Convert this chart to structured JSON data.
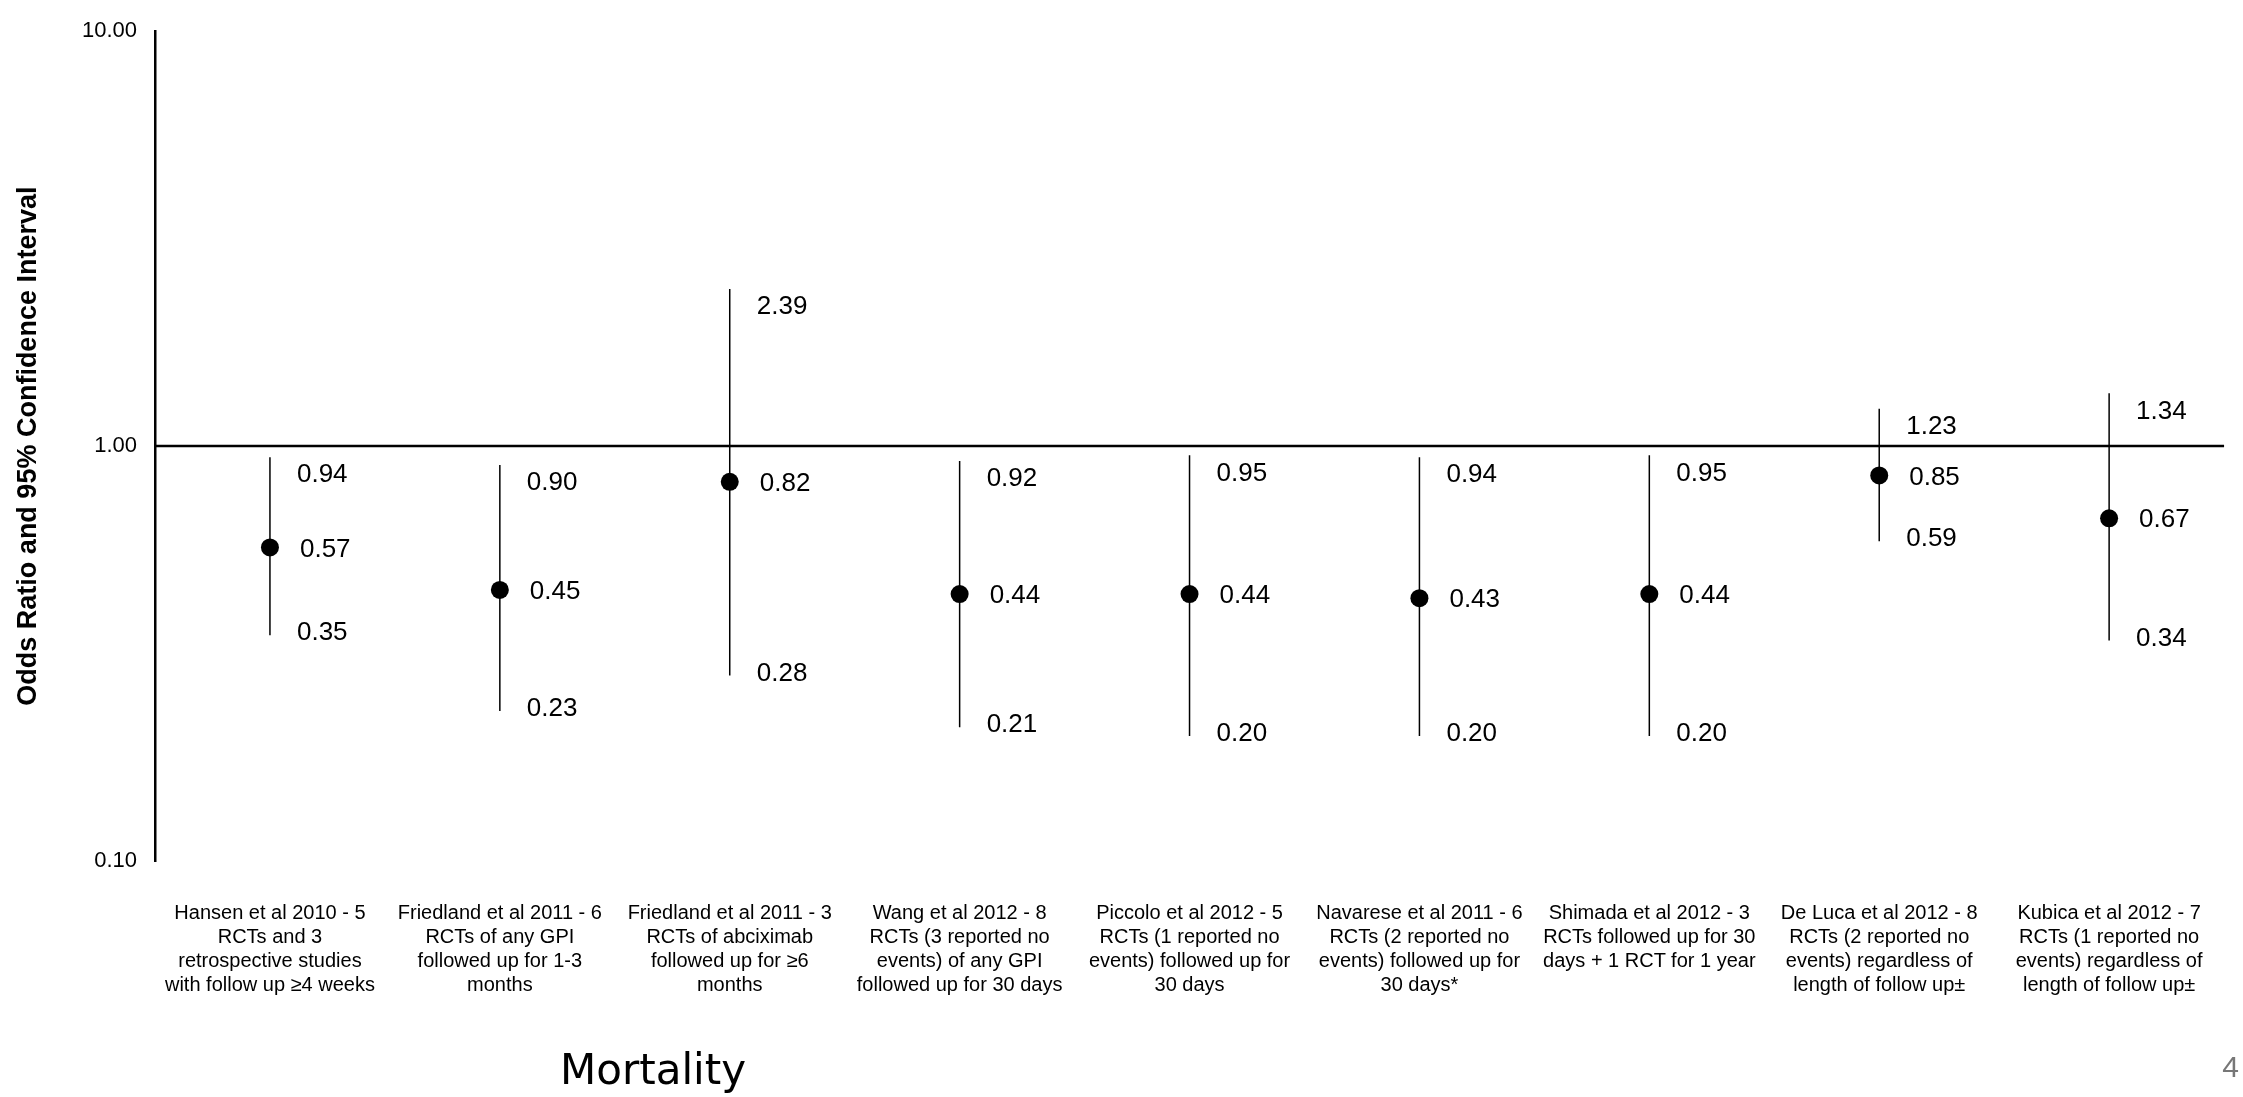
{
  "chart_data": {
    "type": "scatter",
    "ylabel": "Odds Ratio and 95% Confidence Interval",
    "xlabel": "Mortality",
    "categories": [
      "Hansen et al 2010 - 5 RCTs and 3 retrospective studies with follow up ≥4 weeks",
      "Friedland et al 2011 - 6 RCTs of any GPI followed up for 1-3 months",
      "Friedland et al 2011 - 3 RCTs of abciximab followed up for ≥6 months",
      "Wang et al 2012 - 8 RCTs (3 reported no events) of any GPI followed up for 30 days",
      "Piccolo et al 2012 - 5 RCTs (1 reported no events) followed up for 30 days",
      "Navarese et al 2011 - 6 RCTs (2 reported no events) followed up for 30 days*",
      "Shimada et al 2012 - 3 RCTs followed up for 30 days + 1 RCT for 1 year",
      "De Luca et al 2012 - 8 RCTs (2 reported no events) regardless of length of follow up±",
      "Kubica et al 2012 - 7 RCTs (1 reported no events) regardless of length of follow up±"
    ],
    "values": [
      0.57,
      0.45,
      0.82,
      0.44,
      0.44,
      0.43,
      0.44,
      0.85,
      0.67
    ],
    "errors": [
      [
        0.35,
        0.94
      ],
      [
        0.23,
        0.9
      ],
      [
        0.28,
        2.39
      ],
      [
        0.21,
        0.92
      ],
      [
        0.2,
        0.95
      ],
      [
        0.2,
        0.94
      ],
      [
        0.2,
        0.95
      ],
      [
        0.59,
        1.23
      ],
      [
        0.34,
        1.34
      ]
    ],
    "color": "#000000",
    "marker": "circle",
    "log": "y",
    "ylim": [
      0.1,
      10
    ],
    "yticks": [
      {
        "value": 0.1,
        "label": "0.10"
      },
      {
        "value": 1,
        "label": "1.00"
      },
      {
        "value": 10,
        "label": "10.00"
      }
    ],
    "ref_lines": [
      {
        "axis": "y",
        "value": 1,
        "color": "#000000"
      }
    ],
    "data_labels": true,
    "grid": false,
    "legend": false,
    "annotations": [
      "4",
      {
        "text": "0.94",
        "x": "Hansen et al 2010 - 5 RCTs and 3 retrospective studies with follow up ≥4 weeks",
        "y": 0.94
      },
      {
        "text": "0.35",
        "x": "Hansen et al 2010 - 5 RCTs and 3 retrospective studies with follow up ≥4 weeks",
        "y": 0.35
      },
      {
        "text": "0.90",
        "x": "Friedland et al 2011 - 6 RCTs of any GPI followed up for 1-3 months",
        "y": 0.9
      },
      {
        "text": "0.23",
        "x": "Friedland et al 2011 - 6 RCTs of any GPI followed up for 1-3 months",
        "y": 0.23
      },
      {
        "text": "2.39",
        "x": "Friedland et al 2011 - 3 RCTs of abciximab followed up for ≥6 months",
        "y": 2.39
      },
      {
        "text": "0.28",
        "x": "Friedland et al 2011 - 3 RCTs of abciximab followed up for ≥6 months",
        "y": 0.28
      },
      {
        "text": "0.92",
        "x": "Wang et al 2012 - 8 RCTs (3 reported no events) of any GPI followed up for 30 days",
        "y": 0.92
      },
      {
        "text": "0.21",
        "x": "Wang et al 2012 - 8 RCTs (3 reported no events) of any GPI followed up for 30 days",
        "y": 0.21
      },
      {
        "text": "0.95",
        "x": "Piccolo et al 2012 - 5 RCTs (1 reported no events) followed up for 30 days",
        "y": 0.95
      },
      {
        "text": "0.20",
        "x": "Piccolo et al 2012 - 5 RCTs (1 reported no events) followed up for 30 days",
        "y": 0.2
      },
      {
        "text": "0.94",
        "x": "Navarese et al 2011 - 6 RCTs (2 reported no events) followed up for 30 days*",
        "y": 0.94
      },
      {
        "text": "0.20",
        "x": "Navarese et al 2011 - 6 RCTs (2 reported no events) followed up for 30 days*",
        "y": 0.2
      },
      {
        "text": "0.95",
        "x": "Shimada et al 2012 - 3 RCTs followed up for 30 days + 1 RCT for 1 year",
        "y": 0.95
      },
      {
        "text": "0.20",
        "x": "Shimada et al 2012 - 3 RCTs followed up for 30 days + 1 RCT for 1 year",
        "y": 0.2
      },
      {
        "text": "1.23",
        "x": "De Luca et al 2012 - 8 RCTs (2 reported no events) regardless of length of follow up±",
        "y": 1.23
      },
      {
        "text": "0.59",
        "x": "De Luca et al 2012 - 8 RCTs (2 reported no events) regardless of length of follow up±",
        "y": 0.59
      },
      {
        "text": "1.34",
        "x": "Kubica et al 2012 - 7 RCTs (1 reported no events) regardless of length of follow up±",
        "y": 1.34
      },
      {
        "text": "0.34",
        "x": "Kubica et al 2012 - 7 RCTs (1 reported no events) regardless of length of follow up±",
        "y": 0.34
      }
    ]
  }
}
